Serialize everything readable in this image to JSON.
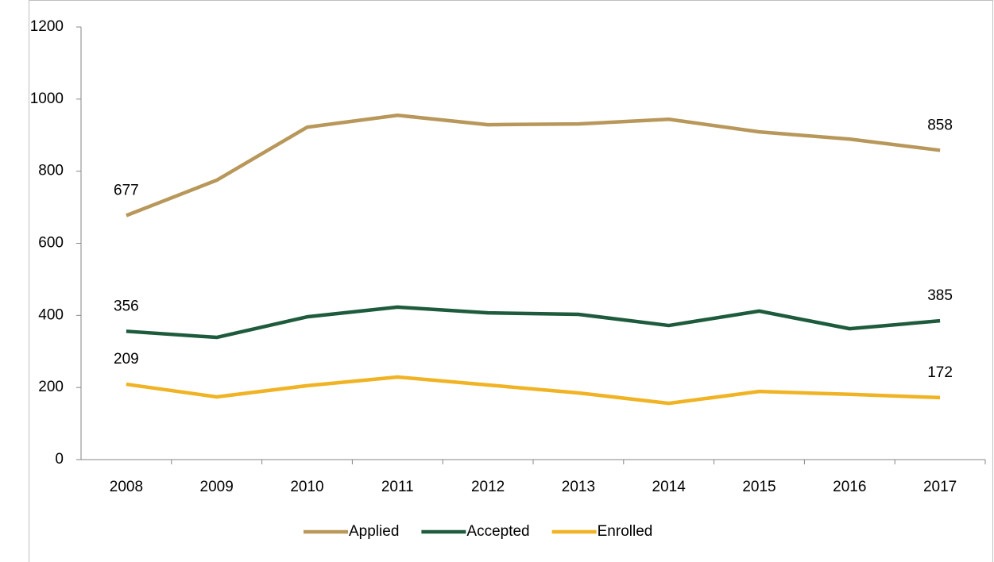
{
  "chart_data": {
    "type": "line",
    "categories": [
      "2008",
      "2009",
      "2010",
      "2011",
      "2012",
      "2013",
      "2014",
      "2015",
      "2016",
      "2017"
    ],
    "series": [
      {
        "name": "Applied",
        "color": "#b8975a",
        "values": [
          677,
          775,
          922,
          955,
          929,
          931,
          944,
          909,
          889,
          858
        ]
      },
      {
        "name": "Accepted",
        "color": "#1e5b3c",
        "values": [
          356,
          339,
          396,
          423,
          407,
          403,
          372,
          412,
          363,
          385
        ]
      },
      {
        "name": "Enrolled",
        "color": "#f0b323",
        "values": [
          209,
          174,
          205,
          229,
          207,
          185,
          156,
          189,
          181,
          172
        ]
      }
    ],
    "ylim": [
      0,
      1200
    ],
    "yticks": [
      0,
      200,
      400,
      600,
      800,
      1000,
      1200
    ],
    "grid": false,
    "data_labels": "endpoints",
    "legend": "bottom"
  }
}
